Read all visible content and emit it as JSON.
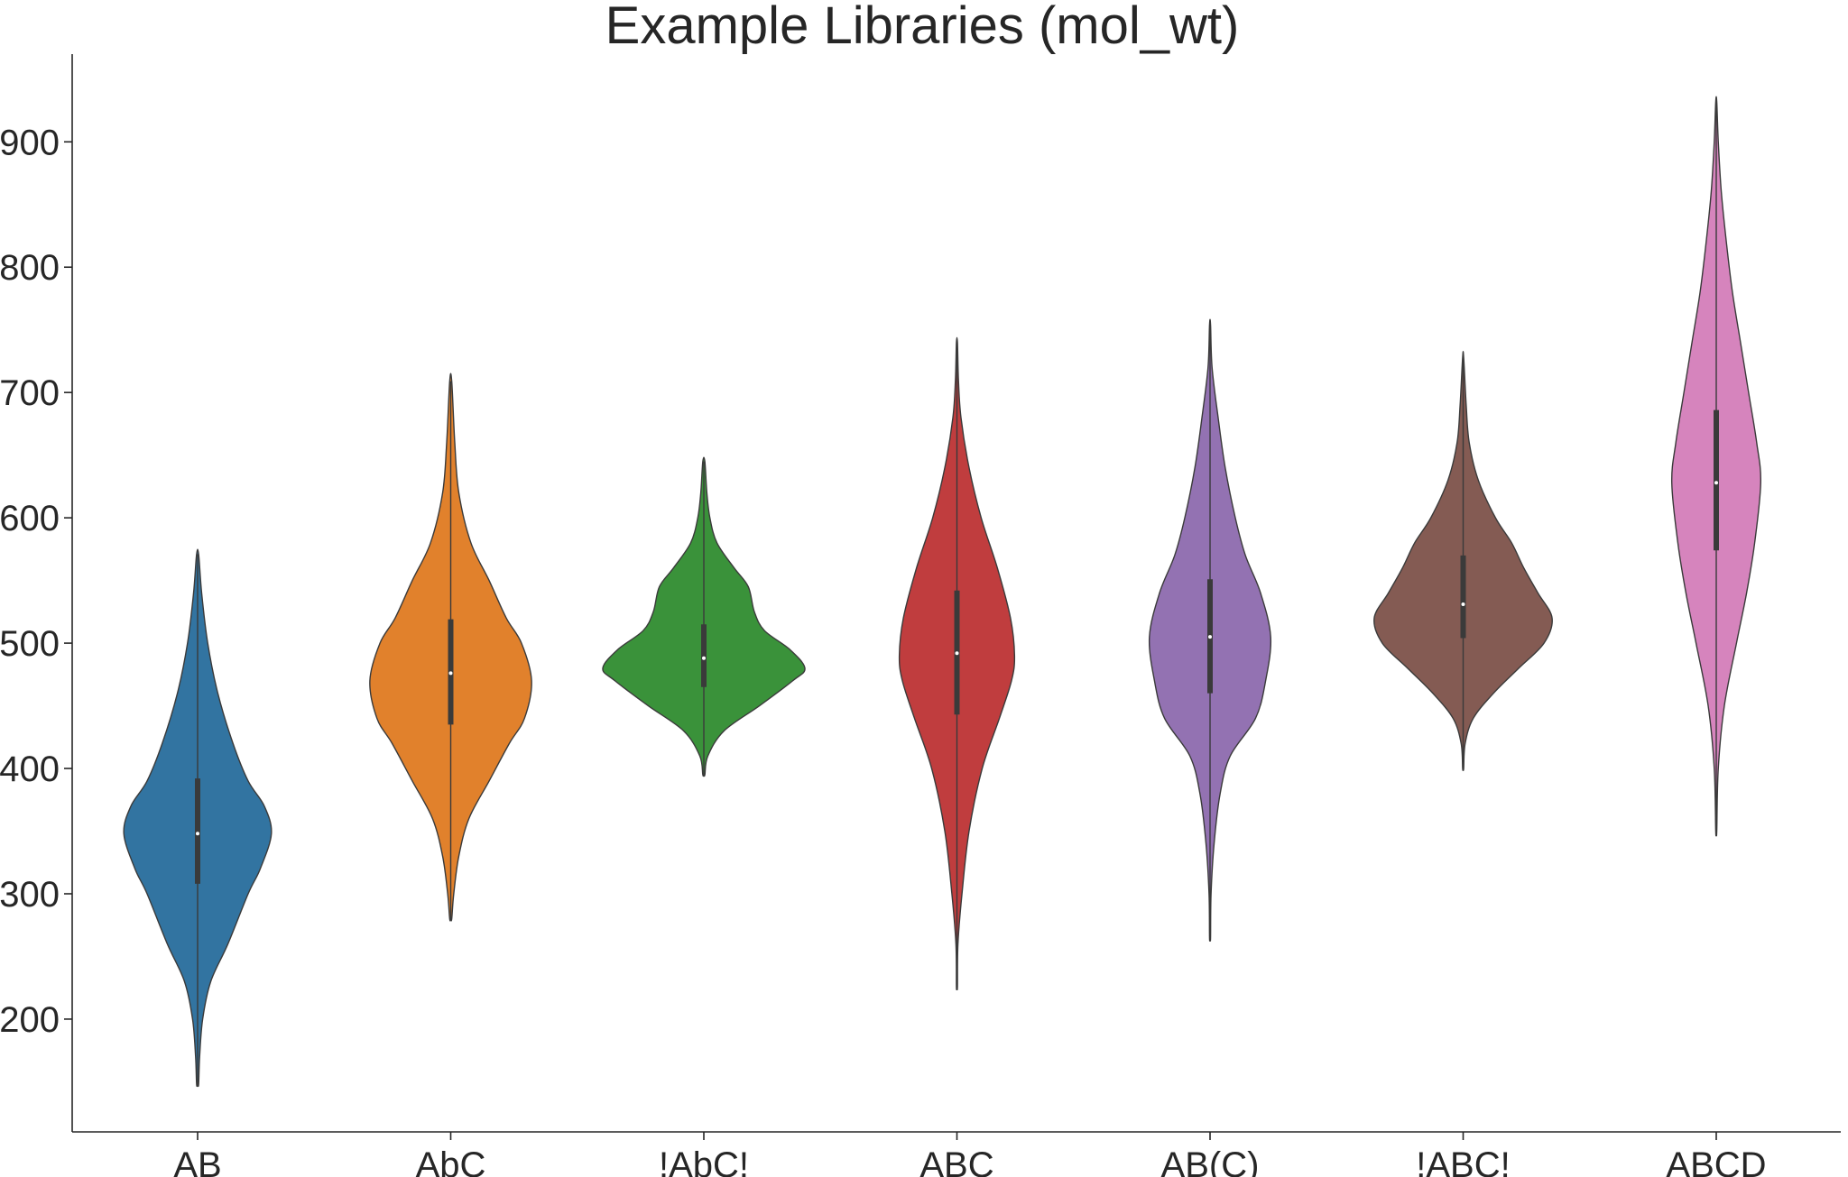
{
  "chart_data": {
    "type": "violin",
    "title": "Example Libraries (mol_wt)",
    "xlabel": "",
    "ylabel": "",
    "ylim": [
      110,
      970
    ],
    "yticks": [
      200,
      300,
      400,
      500,
      600,
      700,
      800,
      900
    ],
    "grid": false,
    "categories": [
      "AB",
      "AbC",
      "!AbC!",
      "ABC",
      "AB(C)",
      "!ABC!",
      "ABCD"
    ],
    "series": [
      {
        "category": "AB",
        "color": "#3274a1",
        "min": 148,
        "q1": 308,
        "median": 348,
        "q3": 392,
        "max": 571,
        "density": [
          [
            148,
            0.01
          ],
          [
            170,
            0.02
          ],
          [
            200,
            0.05
          ],
          [
            230,
            0.13
          ],
          [
            260,
            0.3
          ],
          [
            300,
            0.5
          ],
          [
            320,
            0.62
          ],
          [
            348,
            0.73
          ],
          [
            370,
            0.66
          ],
          [
            390,
            0.5
          ],
          [
            420,
            0.35
          ],
          [
            460,
            0.2
          ],
          [
            500,
            0.1
          ],
          [
            540,
            0.04
          ],
          [
            571,
            0.01
          ]
        ]
      },
      {
        "category": "AbC",
        "color": "#e1812c",
        "min": 280,
        "q1": 435,
        "median": 476,
        "q3": 519,
        "max": 709,
        "density": [
          [
            280,
            0.01
          ],
          [
            300,
            0.03
          ],
          [
            330,
            0.08
          ],
          [
            360,
            0.18
          ],
          [
            390,
            0.38
          ],
          [
            420,
            0.58
          ],
          [
            440,
            0.73
          ],
          [
            470,
            0.8
          ],
          [
            500,
            0.7
          ],
          [
            520,
            0.55
          ],
          [
            550,
            0.38
          ],
          [
            580,
            0.2
          ],
          [
            620,
            0.08
          ],
          [
            660,
            0.04
          ],
          [
            709,
            0.01
          ]
        ]
      },
      {
        "category": "!AbC!",
        "color": "#3a923a",
        "min": 395,
        "q1": 465,
        "median": 488,
        "q3": 515,
        "max": 645,
        "density": [
          [
            395,
            0.01
          ],
          [
            410,
            0.04
          ],
          [
            430,
            0.2
          ],
          [
            450,
            0.55
          ],
          [
            470,
            0.88
          ],
          [
            480,
            1.0
          ],
          [
            495,
            0.85
          ],
          [
            510,
            0.6
          ],
          [
            525,
            0.5
          ],
          [
            545,
            0.44
          ],
          [
            560,
            0.3
          ],
          [
            580,
            0.13
          ],
          [
            600,
            0.06
          ],
          [
            620,
            0.03
          ],
          [
            645,
            0.01
          ]
        ]
      },
      {
        "category": "ABC",
        "color": "#c03d3e",
        "min": 226,
        "q1": 443,
        "median": 492,
        "q3": 542,
        "max": 740,
        "density": [
          [
            226,
            0.005
          ],
          [
            260,
            0.01
          ],
          [
            300,
            0.05
          ],
          [
            350,
            0.12
          ],
          [
            400,
            0.25
          ],
          [
            440,
            0.42
          ],
          [
            470,
            0.54
          ],
          [
            490,
            0.57
          ],
          [
            520,
            0.53
          ],
          [
            560,
            0.4
          ],
          [
            600,
            0.24
          ],
          [
            640,
            0.12
          ],
          [
            680,
            0.04
          ],
          [
            710,
            0.015
          ],
          [
            740,
            0.005
          ]
        ]
      },
      {
        "category": "AB(C)",
        "color": "#9372b2",
        "min": 265,
        "q1": 460,
        "median": 505,
        "q3": 551,
        "max": 754,
        "density": [
          [
            265,
            0.005
          ],
          [
            300,
            0.01
          ],
          [
            340,
            0.04
          ],
          [
            380,
            0.1
          ],
          [
            410,
            0.2
          ],
          [
            440,
            0.45
          ],
          [
            470,
            0.55
          ],
          [
            505,
            0.6
          ],
          [
            540,
            0.5
          ],
          [
            570,
            0.35
          ],
          [
            600,
            0.25
          ],
          [
            640,
            0.15
          ],
          [
            680,
            0.08
          ],
          [
            720,
            0.02
          ],
          [
            754,
            0.005
          ]
        ]
      },
      {
        "category": "!ABC!",
        "color": "#845b53",
        "min": 400,
        "q1": 504,
        "median": 531,
        "q3": 570,
        "max": 728,
        "density": [
          [
            400,
            0.005
          ],
          [
            420,
            0.02
          ],
          [
            440,
            0.1
          ],
          [
            460,
            0.3
          ],
          [
            480,
            0.55
          ],
          [
            500,
            0.8
          ],
          [
            520,
            0.88
          ],
          [
            540,
            0.74
          ],
          [
            560,
            0.6
          ],
          [
            580,
            0.48
          ],
          [
            600,
            0.32
          ],
          [
            630,
            0.15
          ],
          [
            660,
            0.06
          ],
          [
            690,
            0.03
          ],
          [
            728,
            0.005
          ]
        ]
      },
      {
        "category": "ABCD",
        "color": "#d684bd",
        "min": 350,
        "q1": 574,
        "median": 628,
        "q3": 686,
        "max": 932,
        "density": [
          [
            350,
            0.005
          ],
          [
            400,
            0.02
          ],
          [
            450,
            0.08
          ],
          [
            500,
            0.2
          ],
          [
            540,
            0.3
          ],
          [
            580,
            0.38
          ],
          [
            628,
            0.44
          ],
          [
            660,
            0.4
          ],
          [
            700,
            0.32
          ],
          [
            740,
            0.24
          ],
          [
            780,
            0.16
          ],
          [
            820,
            0.1
          ],
          [
            860,
            0.05
          ],
          [
            900,
            0.02
          ],
          [
            932,
            0.005
          ]
        ]
      }
    ]
  }
}
